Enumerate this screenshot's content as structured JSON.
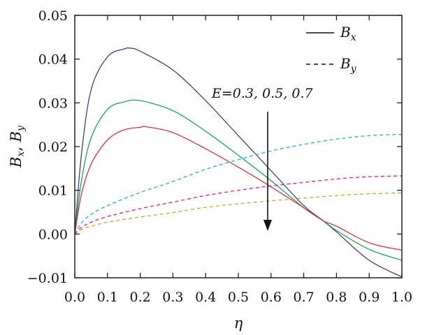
{
  "chart_data": {
    "type": "line",
    "title": "",
    "xlabel": "η",
    "ylabel": "Bx, By",
    "xlim": [
      0.0,
      1.0
    ],
    "ylim": [
      -0.01,
      0.05
    ],
    "x_ticks": [
      "0.0",
      "0.1",
      "0.2",
      "0.3",
      "0.4",
      "0.5",
      "0.6",
      "0.7",
      "0.8",
      "0.9",
      "1.0"
    ],
    "y_ticks": [
      "−0.01",
      "0.00",
      "0.01",
      "0.02",
      "0.03",
      "0.04",
      "0.05"
    ],
    "grid": false,
    "legend_position": "top-right",
    "legend": [
      {
        "label": "B",
        "sub": "x",
        "style": "solid"
      },
      {
        "label": "B",
        "sub": "y",
        "style": "dashed"
      }
    ],
    "annotation": {
      "text": "E=0.3, 0.5, 0.7",
      "arrow": "down"
    },
    "series": [
      {
        "group": "Bx",
        "E": "0.3",
        "color": "#2e3192",
        "dash": false,
        "x": [
          0,
          0.02,
          0.05,
          0.1,
          0.15,
          0.17,
          0.2,
          0.3,
          0.4,
          0.5,
          0.6,
          0.7,
          0.76,
          0.8,
          0.9,
          1.0
        ],
        "y": [
          0,
          0.018,
          0.033,
          0.0405,
          0.0423,
          0.0425,
          0.0418,
          0.0375,
          0.0305,
          0.0225,
          0.0145,
          0.0065,
          0.003,
          0.0005,
          -0.006,
          -0.0098
        ]
      },
      {
        "group": "Bx",
        "E": "0.5",
        "color": "#00a651",
        "dash": false,
        "x": [
          0,
          0.02,
          0.05,
          0.1,
          0.15,
          0.2,
          0.3,
          0.4,
          0.5,
          0.6,
          0.7,
          0.76,
          0.8,
          0.9,
          1.0
        ],
        "y": [
          0,
          0.012,
          0.022,
          0.0285,
          0.0302,
          0.0305,
          0.0282,
          0.0235,
          0.018,
          0.0122,
          0.006,
          0.003,
          0.0008,
          -0.0035,
          -0.006
        ]
      },
      {
        "group": "Bx",
        "E": "0.7",
        "color": "#ed1c24",
        "dash": false,
        "x": [
          0,
          0.02,
          0.05,
          0.1,
          0.15,
          0.2,
          0.22,
          0.3,
          0.4,
          0.5,
          0.6,
          0.7,
          0.76,
          0.8,
          0.9,
          1.0
        ],
        "y": [
          0,
          0.009,
          0.016,
          0.0215,
          0.0238,
          0.0244,
          0.0245,
          0.0232,
          0.0195,
          0.0153,
          0.0108,
          0.006,
          0.003,
          0.0018,
          -0.002,
          -0.0037
        ]
      },
      {
        "group": "By",
        "E": "0.3",
        "color": "#00aeef",
        "dash": true,
        "x": [
          0,
          0.02,
          0.05,
          0.1,
          0.2,
          0.3,
          0.4,
          0.5,
          0.6,
          0.7,
          0.8,
          0.9,
          1.0
        ],
        "y": [
          0,
          0.0025,
          0.0045,
          0.0065,
          0.0095,
          0.012,
          0.0148,
          0.017,
          0.019,
          0.0205,
          0.0217,
          0.0225,
          0.0228
        ]
      },
      {
        "group": "By",
        "E": "0.5",
        "color": "#ec008c",
        "dash": true,
        "x": [
          0,
          0.02,
          0.05,
          0.1,
          0.2,
          0.3,
          0.4,
          0.5,
          0.6,
          0.7,
          0.8,
          0.9,
          1.0
        ],
        "y": [
          0,
          0.0015,
          0.0027,
          0.004,
          0.0058,
          0.0073,
          0.0088,
          0.01,
          0.011,
          0.0118,
          0.0126,
          0.0131,
          0.0133
        ]
      },
      {
        "group": "By",
        "E": "0.7",
        "color": "#c8a415",
        "dash": true,
        "x": [
          0,
          0.02,
          0.05,
          0.1,
          0.2,
          0.3,
          0.4,
          0.5,
          0.6,
          0.7,
          0.8,
          0.9,
          1.0
        ],
        "y": [
          0,
          0.001,
          0.0018,
          0.0027,
          0.0039,
          0.0049,
          0.0061,
          0.0069,
          0.0076,
          0.0082,
          0.0088,
          0.0092,
          0.0094
        ]
      }
    ]
  }
}
